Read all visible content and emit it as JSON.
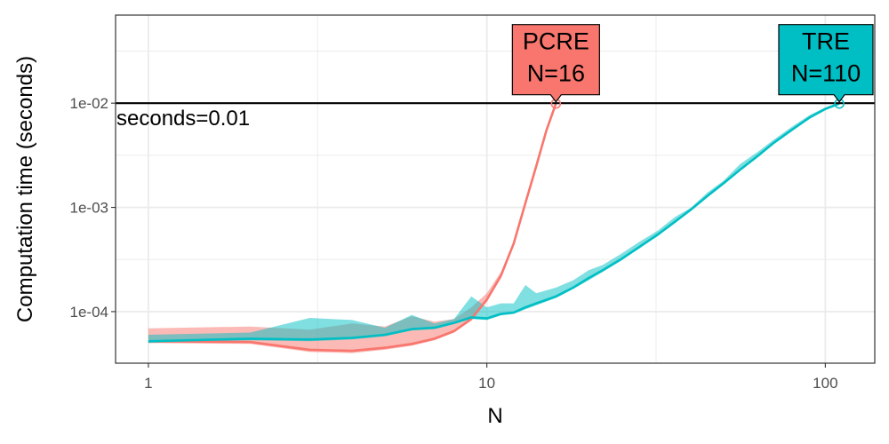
{
  "chart_data": {
    "type": "line",
    "xlabel": "N",
    "ylabel": "Computation time (seconds)",
    "x_scale": "log10",
    "y_scale": "log10",
    "xlim": [
      0.8,
      140
    ],
    "ylim": [
      3.2e-05,
      0.07
    ],
    "x_ticks": [
      {
        "value": 1,
        "label": "1"
      },
      {
        "value": 10,
        "label": "10"
      },
      {
        "value": 100,
        "label": "100"
      }
    ],
    "y_ticks": [
      {
        "value": 0.0001,
        "label": "1e-04"
      },
      {
        "value": 0.001,
        "label": "1e-03"
      },
      {
        "value": 0.01,
        "label": "1e-02"
      }
    ],
    "grid": true,
    "hline": {
      "value": 0.01,
      "label": "seconds=0.01"
    },
    "series": [
      {
        "color": "#F8766D",
        "x": [
          1,
          2,
          3,
          4,
          5,
          6,
          7,
          8,
          9,
          10,
          11,
          12,
          13,
          14,
          15,
          16
        ],
        "median": [
          5.2e-05,
          5.1e-05,
          4.3e-05,
          4.2e-05,
          4.5e-05,
          4.9e-05,
          5.5e-05,
          6.5e-05,
          8.5e-05,
          0.00013,
          0.00022,
          0.00045,
          0.0011,
          0.0025,
          0.0055,
          0.0099
        ],
        "min": [
          5e-05,
          4.9e-05,
          4.1e-05,
          4e-05,
          4.3e-05,
          4.7e-05,
          5.3e-05,
          6.3e-05,
          8.2e-05,
          0.000125,
          0.00021,
          0.00043,
          0.00105,
          0.0024,
          0.0053,
          0.0097
        ],
        "max": [
          6.9e-05,
          7.2e-05,
          6.7e-05,
          7.7e-05,
          7.2e-05,
          9e-05,
          8e-05,
          8.5e-05,
          0.00011,
          0.00015,
          0.00024,
          0.00047,
          0.00115,
          0.0026,
          0.0057,
          0.0101
        ],
        "callout": {
          "label": "PCRE",
          "sublabel": "N=16"
        }
      },
      {
        "color": "#00BFC4",
        "x": [
          1,
          2,
          3,
          4,
          5,
          6,
          7,
          8,
          9,
          10,
          11,
          12,
          13,
          14,
          16,
          18,
          20,
          22,
          25,
          28,
          32,
          36,
          40,
          45,
          50,
          56,
          63,
          70,
          80,
          90,
          100,
          110
        ],
        "median": [
          5.2e-05,
          5.5e-05,
          5.4e-05,
          5.6e-05,
          6e-05,
          6.8e-05,
          7e-05,
          7.8e-05,
          8.8e-05,
          8.6e-05,
          9.5e-05,
          9.8e-05,
          0.00011,
          0.00012,
          0.00014,
          0.00017,
          0.00021,
          0.00025,
          0.00032,
          0.00041,
          0.00055,
          0.00073,
          0.00095,
          0.0013,
          0.0017,
          0.0023,
          0.0031,
          0.0041,
          0.0056,
          0.0073,
          0.0088,
          0.0099
        ],
        "min": [
          5e-05,
          5.3e-05,
          5.2e-05,
          5.4e-05,
          5.8e-05,
          6.6e-05,
          6.8e-05,
          7.6e-05,
          8.5e-05,
          8.3e-05,
          9.2e-05,
          9.5e-05,
          0.000105,
          0.000115,
          0.000135,
          0.000165,
          0.0002,
          0.00024,
          0.00031,
          0.0004,
          0.00053,
          0.00071,
          0.00092,
          0.00127,
          0.00166,
          0.00225,
          0.003,
          0.004,
          0.0055,
          0.0071,
          0.0086,
          0.0097
        ],
        "max": [
          6e-05,
          6.3e-05,
          8.7e-05,
          8.3e-05,
          7e-05,
          9.3e-05,
          7.7e-05,
          8.5e-05,
          0.00014,
          0.00011,
          0.00012,
          0.00012,
          0.00018,
          0.00015,
          0.00017,
          0.0002,
          0.00025,
          0.00028,
          0.00036,
          0.00046,
          0.0006,
          0.00081,
          0.00099,
          0.0014,
          0.0018,
          0.0026,
          0.0034,
          0.0044,
          0.006,
          0.0077,
          0.0091,
          0.0102
        ],
        "callout": {
          "label": "TRE",
          "sublabel": "N=110"
        }
      }
    ]
  }
}
